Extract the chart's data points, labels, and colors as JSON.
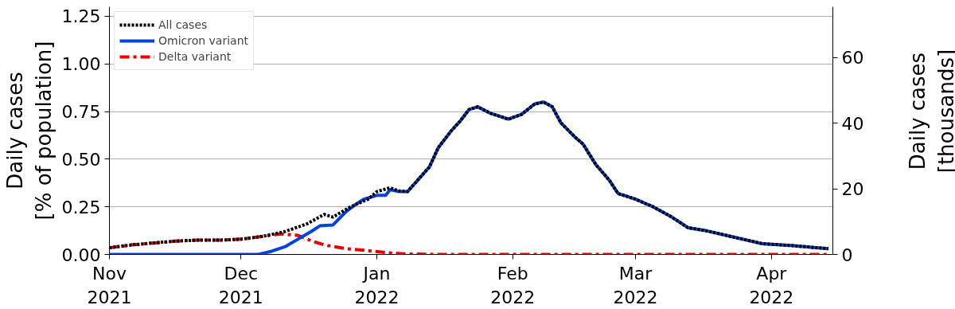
{
  "chart_data": {
    "type": "line",
    "xlabel": null,
    "ylabel": "Daily cases\n[% of population]",
    "y2label": "Daily cases\n[thousands]",
    "xlim": [
      "2021-11-01",
      "2022-04-15"
    ],
    "xticks": [
      {
        "value": "2021-11-01",
        "label": "Nov\n2021"
      },
      {
        "value": "2021-12-01",
        "label": "Dec\n2021"
      },
      {
        "value": "2022-01-01",
        "label": "Jan\n2022"
      },
      {
        "value": "2022-02-01",
        "label": "Feb\n2022"
      },
      {
        "value": "2022-03-01",
        "label": "Mar\n2022"
      },
      {
        "value": "2022-04-01",
        "label": "Apr\n2022"
      }
    ],
    "ylim": [
      0,
      1.3
    ],
    "yticks": [
      {
        "value": 0,
        "label": "0.00"
      },
      {
        "value": 0.25,
        "label": "0.25"
      },
      {
        "value": 0.5,
        "label": "0.50"
      },
      {
        "value": 0.75,
        "label": "0.75"
      },
      {
        "value": 1,
        "label": "1.00"
      },
      {
        "value": 1.25,
        "label": "1.25"
      }
    ],
    "y2lim": [
      0,
      75.4
    ],
    "y2ticks": [
      0,
      20,
      40,
      60
    ],
    "grid": "y",
    "legend": "top left",
    "series": [
      {
        "name": "All cases",
        "color": "#000000",
        "line_style": "dotted",
        "x": [
          "2021-11-01",
          "2021-11-06",
          "2021-11-11",
          "2021-11-16",
          "2021-11-21",
          "2021-11-26",
          "2021-12-01",
          "2021-12-06",
          "2021-12-11",
          "2021-12-16",
          "2021-12-20",
          "2021-12-22",
          "2021-12-26",
          "2021-12-30",
          "2022-01-01",
          "2022-01-04",
          "2022-01-06",
          "2022-01-08",
          "2022-01-13",
          "2022-01-15",
          "2022-01-18",
          "2022-01-20",
          "2022-01-22",
          "2022-01-24",
          "2022-01-27",
          "2022-01-31",
          "2022-02-03",
          "2022-02-06",
          "2022-02-08",
          "2022-02-10",
          "2022-02-12",
          "2022-02-15",
          "2022-02-17",
          "2022-02-20",
          "2022-02-23",
          "2022-02-25",
          "2022-03-01",
          "2022-03-05",
          "2022-03-09",
          "2022-03-13",
          "2022-03-17",
          "2022-03-24",
          "2022-03-30",
          "2022-04-06",
          "2022-04-14"
        ],
        "values": [
          0.035,
          0.05,
          0.06,
          0.07,
          0.075,
          0.075,
          0.08,
          0.095,
          0.12,
          0.16,
          0.21,
          0.196,
          0.25,
          0.29,
          0.33,
          0.35,
          0.333,
          0.33,
          0.46,
          0.56,
          0.65,
          0.7,
          0.76,
          0.775,
          0.74,
          0.71,
          0.735,
          0.79,
          0.8,
          0.775,
          0.69,
          0.62,
          0.58,
          0.47,
          0.39,
          0.32,
          0.29,
          0.25,
          0.2,
          0.14,
          0.125,
          0.088,
          0.056,
          0.046,
          0.03
        ]
      },
      {
        "name": "Omicron variant",
        "color": "#0044dd",
        "line_style": "solid",
        "x": [
          "2021-11-01",
          "2021-12-05",
          "2021-12-08",
          "2021-12-11",
          "2021-12-14",
          "2021-12-17",
          "2021-12-19",
          "2021-12-22",
          "2021-12-25",
          "2021-12-27",
          "2021-12-29",
          "2022-01-01",
          "2022-01-03",
          "2022-01-04",
          "2022-01-06",
          "2022-01-08",
          "2022-01-13",
          "2022-01-15",
          "2022-01-18",
          "2022-01-20",
          "2022-01-22",
          "2022-01-24",
          "2022-01-27",
          "2022-01-31",
          "2022-02-03",
          "2022-02-06",
          "2022-02-08",
          "2022-02-10",
          "2022-02-12",
          "2022-02-15",
          "2022-02-17",
          "2022-02-20",
          "2022-02-23",
          "2022-02-25",
          "2022-03-01",
          "2022-03-05",
          "2022-03-09",
          "2022-03-13",
          "2022-03-17",
          "2022-03-24",
          "2022-03-30",
          "2022-04-06",
          "2022-04-14"
        ],
        "values": [
          0,
          0,
          0.017,
          0.04,
          0.08,
          0.12,
          0.15,
          0.155,
          0.225,
          0.26,
          0.29,
          0.31,
          0.31,
          0.34,
          0.33,
          0.33,
          0.46,
          0.56,
          0.65,
          0.7,
          0.76,
          0.775,
          0.74,
          0.71,
          0.735,
          0.79,
          0.8,
          0.775,
          0.69,
          0.62,
          0.58,
          0.47,
          0.39,
          0.32,
          0.29,
          0.25,
          0.2,
          0.14,
          0.125,
          0.088,
          0.056,
          0.046,
          0.03
        ]
      },
      {
        "name": "Delta variant",
        "color": "#ee0000",
        "line_style": "dashdot",
        "x": [
          "2021-11-01",
          "2021-11-06",
          "2021-11-11",
          "2021-11-16",
          "2021-11-21",
          "2021-11-26",
          "2021-12-01",
          "2021-12-06",
          "2021-12-10",
          "2021-12-14",
          "2021-12-17",
          "2021-12-20",
          "2021-12-25",
          "2021-12-30",
          "2022-01-03",
          "2022-01-07",
          "2022-01-15",
          "2022-02-01",
          "2022-03-01",
          "2022-04-01",
          "2022-04-14"
        ],
        "values": [
          0.035,
          0.05,
          0.06,
          0.07,
          0.075,
          0.075,
          0.08,
          0.095,
          0.108,
          0.1,
          0.072,
          0.05,
          0.03,
          0.02,
          0.01,
          0.003,
          0,
          0,
          0,
          0,
          0
        ]
      }
    ]
  }
}
